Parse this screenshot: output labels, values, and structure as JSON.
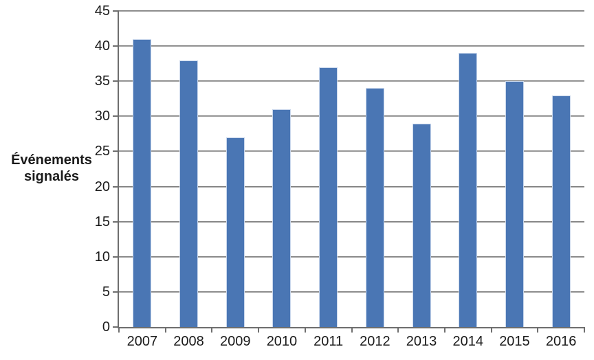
{
  "chart_data": {
    "type": "bar",
    "categories": [
      "2007",
      "2008",
      "2009",
      "2010",
      "2011",
      "2012",
      "2013",
      "2014",
      "2015",
      "2016"
    ],
    "values": [
      41,
      38,
      27,
      31,
      37,
      34,
      29,
      39,
      35,
      33
    ],
    "title": "",
    "xlabel": "",
    "ylabel": "Événements signalés",
    "ylabel_lines": [
      "Événements",
      "signalés"
    ],
    "ylim": [
      0,
      45
    ],
    "ytick_step": 5,
    "grid": true,
    "legend": "none",
    "colors": {
      "bar_fill": "#4A76B4",
      "bar_border": "#C9D7EC",
      "gridline": "#8A8A8A",
      "axis": "#6E6E6E",
      "text": "#1A1A1A"
    }
  }
}
